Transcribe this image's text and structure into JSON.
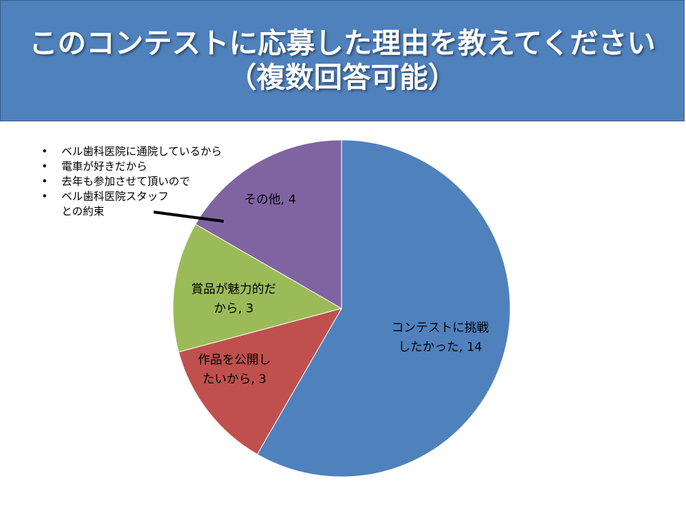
{
  "title": {
    "line1": "このコンテストに応募した理由を教えてください",
    "line2": "（複数回答可能）"
  },
  "notes": [
    "ベル歯科医院に通院しているから",
    "電車が好きだから",
    "去年も参加させて頂いので",
    "ベル歯科医院スタッフ\nとの約束"
  ],
  "notes_bullet": "•",
  "chart_data": {
    "type": "pie",
    "slices": [
      {
        "label": [
          "コンテストに挑戦",
          "したかった, 14"
        ],
        "value": 14,
        "color": "#4f81bd"
      },
      {
        "label": [
          "作品を公開し",
          "たいから, 3"
        ],
        "value": 3,
        "color": "#c0504d"
      },
      {
        "label": [
          "賞品が魅力的だ",
          "から, 3"
        ],
        "value": 3,
        "color": "#9bbb59"
      },
      {
        "label": [
          "その他, 4"
        ],
        "value": 4,
        "color": "#8064a2"
      }
    ],
    "start_angle_deg": 0,
    "direction": "clockwise"
  }
}
